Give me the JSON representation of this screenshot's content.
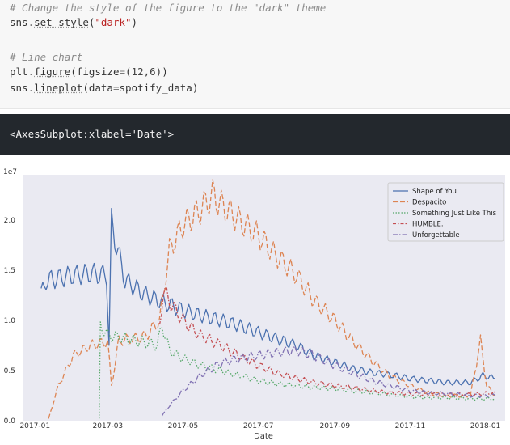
{
  "code_cell": {
    "lines": [
      [
        {
          "t": "# Change the style of the figure to the \"dark\" theme",
          "c": "comment"
        }
      ],
      [
        {
          "t": "sns",
          "c": "name"
        },
        {
          "t": ".",
          "c": "op"
        },
        {
          "t": "set_style",
          "c": "func"
        },
        {
          "t": "(",
          "c": "punc"
        },
        {
          "t": "\"dark\"",
          "c": "str"
        },
        {
          "t": ")",
          "c": "punc"
        }
      ],
      [
        {
          "t": "",
          "c": "name"
        }
      ],
      [
        {
          "t": "# Line chart",
          "c": "comment"
        }
      ],
      [
        {
          "t": "plt",
          "c": "name"
        },
        {
          "t": ".",
          "c": "op"
        },
        {
          "t": "figure",
          "c": "func"
        },
        {
          "t": "(figsize",
          "c": "punc"
        },
        {
          "t": "=",
          "c": "op"
        },
        {
          "t": "(",
          "c": "punc"
        },
        {
          "t": "12",
          "c": "num"
        },
        {
          "t": ",",
          "c": "punc"
        },
        {
          "t": "6",
          "c": "num"
        },
        {
          "t": "))",
          "c": "punc"
        }
      ],
      [
        {
          "t": "sns",
          "c": "name"
        },
        {
          "t": ".",
          "c": "op"
        },
        {
          "t": "lineplot",
          "c": "func"
        },
        {
          "t": "(data",
          "c": "punc"
        },
        {
          "t": "=",
          "c": "op"
        },
        {
          "t": "spotify_data",
          "c": "name"
        },
        {
          "t": ")",
          "c": "punc"
        }
      ]
    ]
  },
  "output": {
    "text": "<AxesSubplot:xlabel='Date'>"
  },
  "chart_data": {
    "type": "line",
    "xlabel": "Date",
    "ylabel": "",
    "offset_label": "1e7",
    "xlim": [
      "2016-12-22",
      "2018-01-17"
    ],
    "ylim": [
      0.0,
      2.45
    ],
    "x_ticks": [
      "2017-01",
      "2017-03",
      "2017-05",
      "2017-07",
      "2017-09",
      "2017-11",
      "2018-01"
    ],
    "x_tick_dates": [
      "2017-01-01",
      "2017-03-01",
      "2017-05-01",
      "2017-07-01",
      "2017-09-01",
      "2017-11-01",
      "2018-01-01"
    ],
    "y_ticks": [
      0.0,
      0.5,
      1.0,
      1.5,
      2.0
    ],
    "y_tick_labels": [
      "0.0",
      "0.5",
      "1.0",
      "1.5",
      "2.0"
    ],
    "grid": false,
    "background": "#eaeaf2",
    "legend_position": "upper-right",
    "series": [
      {
        "name": "Shape of You",
        "color": "#4c72b0",
        "dash": "",
        "points": [
          [
            "2017-01-06",
            1.25
          ],
          [
            "2017-01-10",
            1.4
          ],
          [
            "2017-01-20",
            1.42
          ],
          [
            "2017-02-01",
            1.45
          ],
          [
            "2017-02-15",
            1.47
          ],
          [
            "2017-02-28",
            1.45
          ],
          [
            "2017-03-02",
            0.75
          ],
          [
            "2017-03-04",
            1.98
          ],
          [
            "2017-03-08",
            1.75
          ],
          [
            "2017-03-15",
            1.4
          ],
          [
            "2017-04-01",
            1.25
          ],
          [
            "2017-04-15",
            1.18
          ],
          [
            "2017-05-01",
            1.1
          ],
          [
            "2017-05-15",
            1.05
          ],
          [
            "2017-06-01",
            1.0
          ],
          [
            "2017-06-15",
            0.95
          ],
          [
            "2017-07-01",
            0.88
          ],
          [
            "2017-07-15",
            0.82
          ],
          [
            "2017-08-01",
            0.75
          ],
          [
            "2017-08-15",
            0.65
          ],
          [
            "2017-09-01",
            0.58
          ],
          [
            "2017-09-15",
            0.52
          ],
          [
            "2017-10-01",
            0.48
          ],
          [
            "2017-10-15",
            0.46
          ],
          [
            "2017-11-01",
            0.42
          ],
          [
            "2017-11-15",
            0.4
          ],
          [
            "2017-12-01",
            0.38
          ],
          [
            "2017-12-20",
            0.38
          ],
          [
            "2017-12-30",
            0.45
          ],
          [
            "2018-01-09",
            0.42
          ]
        ]
      },
      {
        "name": "Despacito",
        "color": "#dd8452",
        "dash": "6,3",
        "points": [
          [
            "2017-01-12",
            0.02
          ],
          [
            "2017-01-20",
            0.35
          ],
          [
            "2017-02-01",
            0.65
          ],
          [
            "2017-02-15",
            0.75
          ],
          [
            "2017-02-27",
            0.78
          ],
          [
            "2017-03-01",
            0.78
          ],
          [
            "2017-03-04",
            0.35
          ],
          [
            "2017-03-10",
            0.8
          ],
          [
            "2017-03-25",
            0.82
          ],
          [
            "2017-04-01",
            0.85
          ],
          [
            "2017-04-12",
            1.0
          ],
          [
            "2017-04-20",
            1.7
          ],
          [
            "2017-05-01",
            1.95
          ],
          [
            "2017-05-15",
            2.1
          ],
          [
            "2017-05-25",
            2.25
          ],
          [
            "2017-06-01",
            2.15
          ],
          [
            "2017-06-15",
            2.0
          ],
          [
            "2017-07-01",
            1.85
          ],
          [
            "2017-07-15",
            1.65
          ],
          [
            "2017-08-01",
            1.45
          ],
          [
            "2017-08-15",
            1.2
          ],
          [
            "2017-09-01",
            1.0
          ],
          [
            "2017-09-15",
            0.8
          ],
          [
            "2017-10-01",
            0.6
          ],
          [
            "2017-10-15",
            0.45
          ],
          [
            "2017-11-01",
            0.35
          ],
          [
            "2017-11-15",
            0.28
          ],
          [
            "2017-12-01",
            0.25
          ],
          [
            "2017-12-20",
            0.25
          ],
          [
            "2017-12-28",
            0.8
          ],
          [
            "2018-01-02",
            0.35
          ],
          [
            "2018-01-09",
            0.25
          ]
        ]
      },
      {
        "name": "Something Just Like This",
        "color": "#55a868",
        "dash": "1.5,2",
        "points": [
          [
            "2017-02-22",
            0.02
          ],
          [
            "2017-02-23",
            0.95
          ],
          [
            "2017-03-01",
            0.85
          ],
          [
            "2017-03-15",
            0.82
          ],
          [
            "2017-04-01",
            0.78
          ],
          [
            "2017-04-10",
            0.75
          ],
          [
            "2017-04-14",
            0.95
          ],
          [
            "2017-04-20",
            0.7
          ],
          [
            "2017-05-01",
            0.62
          ],
          [
            "2017-05-15",
            0.55
          ],
          [
            "2017-06-01",
            0.5
          ],
          [
            "2017-06-15",
            0.45
          ],
          [
            "2017-07-01",
            0.4
          ],
          [
            "2017-07-15",
            0.37
          ],
          [
            "2017-08-01",
            0.35
          ],
          [
            "2017-08-15",
            0.33
          ],
          [
            "2017-09-01",
            0.32
          ],
          [
            "2017-09-15",
            0.3
          ],
          [
            "2017-10-01",
            0.28
          ],
          [
            "2017-10-15",
            0.26
          ],
          [
            "2017-11-01",
            0.24
          ],
          [
            "2017-11-15",
            0.23
          ],
          [
            "2017-12-01",
            0.23
          ],
          [
            "2017-12-20",
            0.22
          ],
          [
            "2018-01-09",
            0.22
          ]
        ]
      },
      {
        "name": "HUMBLE.",
        "color": "#c44e52",
        "dash": "4,2,1.5,2",
        "points": [
          [
            "2017-04-12",
            0.95
          ],
          [
            "2017-04-15",
            1.3
          ],
          [
            "2017-04-22",
            1.15
          ],
          [
            "2017-05-01",
            1.0
          ],
          [
            "2017-05-15",
            0.85
          ],
          [
            "2017-06-01",
            0.75
          ],
          [
            "2017-06-15",
            0.65
          ],
          [
            "2017-07-01",
            0.55
          ],
          [
            "2017-07-15",
            0.48
          ],
          [
            "2017-08-01",
            0.42
          ],
          [
            "2017-08-15",
            0.38
          ],
          [
            "2017-09-01",
            0.35
          ],
          [
            "2017-09-15",
            0.33
          ],
          [
            "2017-10-01",
            0.3
          ],
          [
            "2017-10-15",
            0.28
          ],
          [
            "2017-11-01",
            0.27
          ],
          [
            "2017-11-15",
            0.26
          ],
          [
            "2017-12-01",
            0.26
          ],
          [
            "2017-12-20",
            0.26
          ],
          [
            "2018-01-09",
            0.28
          ]
        ]
      },
      {
        "name": "Unforgettable",
        "color": "#8172b3",
        "dash": "6,2,1.5,2",
        "points": [
          [
            "2017-04-14",
            0.05
          ],
          [
            "2017-04-20",
            0.15
          ],
          [
            "2017-05-01",
            0.3
          ],
          [
            "2017-05-15",
            0.45
          ],
          [
            "2017-06-01",
            0.58
          ],
          [
            "2017-06-15",
            0.62
          ],
          [
            "2017-07-01",
            0.65
          ],
          [
            "2017-07-15",
            0.68
          ],
          [
            "2017-08-01",
            0.7
          ],
          [
            "2017-08-15",
            0.65
          ],
          [
            "2017-09-01",
            0.55
          ],
          [
            "2017-09-15",
            0.48
          ],
          [
            "2017-10-01",
            0.4
          ],
          [
            "2017-10-15",
            0.35
          ],
          [
            "2017-11-01",
            0.3
          ],
          [
            "2017-11-15",
            0.28
          ],
          [
            "2017-12-01",
            0.27
          ],
          [
            "2017-12-20",
            0.25
          ],
          [
            "2018-01-09",
            0.25
          ]
        ]
      }
    ]
  }
}
